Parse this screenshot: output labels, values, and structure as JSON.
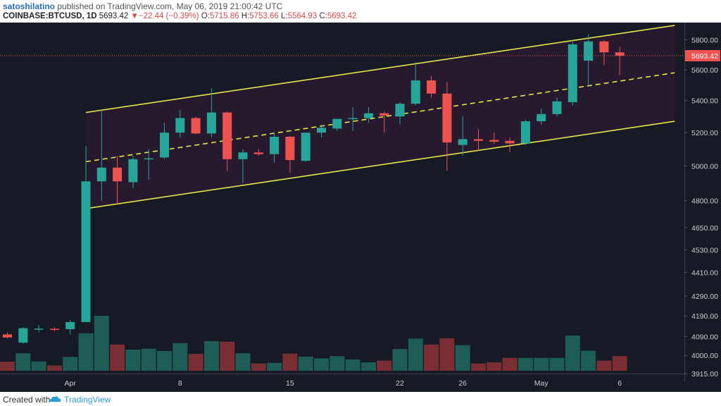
{
  "header": {
    "author": "satoshilatino",
    "published_text": " published on TradingView.com, May 06, 2019 21:00:42 UTC",
    "symbol": "COINBASE:BTCUSD, 1D",
    "last_price": "5693.42",
    "change_arrow": "▼",
    "change": "−22.44 (−0.39%)",
    "open_label": "O:",
    "open": "5715.86",
    "high_label": "H:",
    "high": "5753.66",
    "low_label": "L:",
    "low": "5564.93",
    "close_label": "C:",
    "close": "5693.42"
  },
  "footer": {
    "created_with": "Created with",
    "brand": "TradingView"
  },
  "colors": {
    "background": "#161a25",
    "up": "#26a69a",
    "down": "#ef5350",
    "up_volume": "#1e5c57",
    "down_volume": "#7a2e33",
    "channel_line": "#e6e64a",
    "channel_fill": "#2a1a30",
    "price_line": "#ef5350",
    "axis_text": "#c9ccd4"
  },
  "chart_data": {
    "type": "candlestick",
    "symbol": "COINBASE:BTCUSD",
    "interval": "1D",
    "x_tick_labels": [
      "Apr",
      "8",
      "15",
      "22",
      "26",
      "May",
      "6"
    ],
    "y_tick_labels": [
      "5800.00",
      "5600.00",
      "5400.00",
      "5200.00",
      "5000.00",
      "4800.00",
      "4650.00",
      "4530.00",
      "4410.00",
      "4290.00",
      "4190.00",
      "4090.00",
      "4000.00",
      "3915.00"
    ],
    "scale": "log",
    "ylim": [
      3915,
      5920
    ],
    "current_price_label": "5693.42",
    "candles": [
      {
        "o": 4100,
        "h": 4110,
        "l": 4080,
        "c": 4085
      },
      {
        "o": 4060,
        "h": 4135,
        "l": 4055,
        "c": 4130
      },
      {
        "o": 4125,
        "h": 4145,
        "l": 4110,
        "c": 4128
      },
      {
        "o": 4127,
        "h": 4135,
        "l": 4115,
        "c": 4125
      },
      {
        "o": 4125,
        "h": 4170,
        "l": 4100,
        "c": 4160
      },
      {
        "o": 4160,
        "h": 5120,
        "l": 4160,
        "c": 4910
      },
      {
        "o": 4910,
        "h": 5340,
        "l": 4800,
        "c": 4990
      },
      {
        "o": 4990,
        "h": 5060,
        "l": 4780,
        "c": 4910
      },
      {
        "o": 4905,
        "h": 5060,
        "l": 4870,
        "c": 5040
      },
      {
        "o": 5040,
        "h": 5100,
        "l": 4920,
        "c": 5045
      },
      {
        "o": 5050,
        "h": 5260,
        "l": 5040,
        "c": 5200
      },
      {
        "o": 5200,
        "h": 5340,
        "l": 5170,
        "c": 5290
      },
      {
        "o": 5290,
        "h": 5300,
        "l": 5190,
        "c": 5195
      },
      {
        "o": 5195,
        "h": 5480,
        "l": 5170,
        "c": 5325
      },
      {
        "o": 5325,
        "h": 5330,
        "l": 4970,
        "c": 5040
      },
      {
        "o": 5040,
        "h": 5100,
        "l": 4900,
        "c": 5080
      },
      {
        "o": 5080,
        "h": 5100,
        "l": 5060,
        "c": 5070
      },
      {
        "o": 5070,
        "h": 5200,
        "l": 5020,
        "c": 5175
      },
      {
        "o": 5175,
        "h": 5180,
        "l": 4960,
        "c": 5035
      },
      {
        "o": 5030,
        "h": 5200,
        "l": 5025,
        "c": 5200
      },
      {
        "o": 5200,
        "h": 5250,
        "l": 5170,
        "c": 5230
      },
      {
        "o": 5225,
        "h": 5280,
        "l": 5210,
        "c": 5285
      },
      {
        "o": 5285,
        "h": 5360,
        "l": 5210,
        "c": 5290
      },
      {
        "o": 5290,
        "h": 5360,
        "l": 5260,
        "c": 5320
      },
      {
        "o": 5320,
        "h": 5330,
        "l": 5200,
        "c": 5305
      },
      {
        "o": 5300,
        "h": 5390,
        "l": 5250,
        "c": 5380
      },
      {
        "o": 5380,
        "h": 5650,
        "l": 5370,
        "c": 5530
      },
      {
        "o": 5530,
        "h": 5560,
        "l": 5420,
        "c": 5445
      },
      {
        "o": 5445,
        "h": 5520,
        "l": 4970,
        "c": 5140
      },
      {
        "o": 5125,
        "h": 5300,
        "l": 5060,
        "c": 5160
      },
      {
        "o": 5160,
        "h": 5220,
        "l": 5090,
        "c": 5150
      },
      {
        "o": 5155,
        "h": 5200,
        "l": 5130,
        "c": 5145
      },
      {
        "o": 5150,
        "h": 5170,
        "l": 5080,
        "c": 5135
      },
      {
        "o": 5135,
        "h": 5280,
        "l": 5125,
        "c": 5270
      },
      {
        "o": 5270,
        "h": 5350,
        "l": 5250,
        "c": 5315
      },
      {
        "o": 5315,
        "h": 5420,
        "l": 5300,
        "c": 5395
      },
      {
        "o": 5390,
        "h": 5800,
        "l": 5370,
        "c": 5770
      },
      {
        "o": 5660,
        "h": 5840,
        "l": 5500,
        "c": 5790
      },
      {
        "o": 5790,
        "h": 5800,
        "l": 5630,
        "c": 5716
      },
      {
        "o": 5716,
        "h": 5754,
        "l": 5565,
        "c": 5693
      }
    ],
    "volume_levels": [
      0.32,
      0.62,
      0.33,
      0.19,
      0.49,
      1.33,
      1.95,
      0.93,
      0.75,
      0.78,
      0.7,
      0.98,
      0.6,
      1.05,
      1.03,
      0.62,
      0.26,
      0.28,
      0.61,
      0.5,
      0.44,
      0.52,
      0.4,
      0.3,
      0.36,
      0.77,
      1.14,
      0.93,
      1.15,
      0.91,
      0.26,
      0.3,
      0.46,
      0.46,
      0.46,
      0.46,
      1.25,
      0.71,
      0.36,
      0.52
    ],
    "channel": {
      "upper_start_price": 5325,
      "upper_end_price": 5900,
      "mid_start_price": 5025,
      "mid_end_price": 5580,
      "lower_start_price": 4755,
      "lower_end_price": 5270,
      "start_candle_index": 5,
      "end_candle_index": 42.5
    }
  }
}
